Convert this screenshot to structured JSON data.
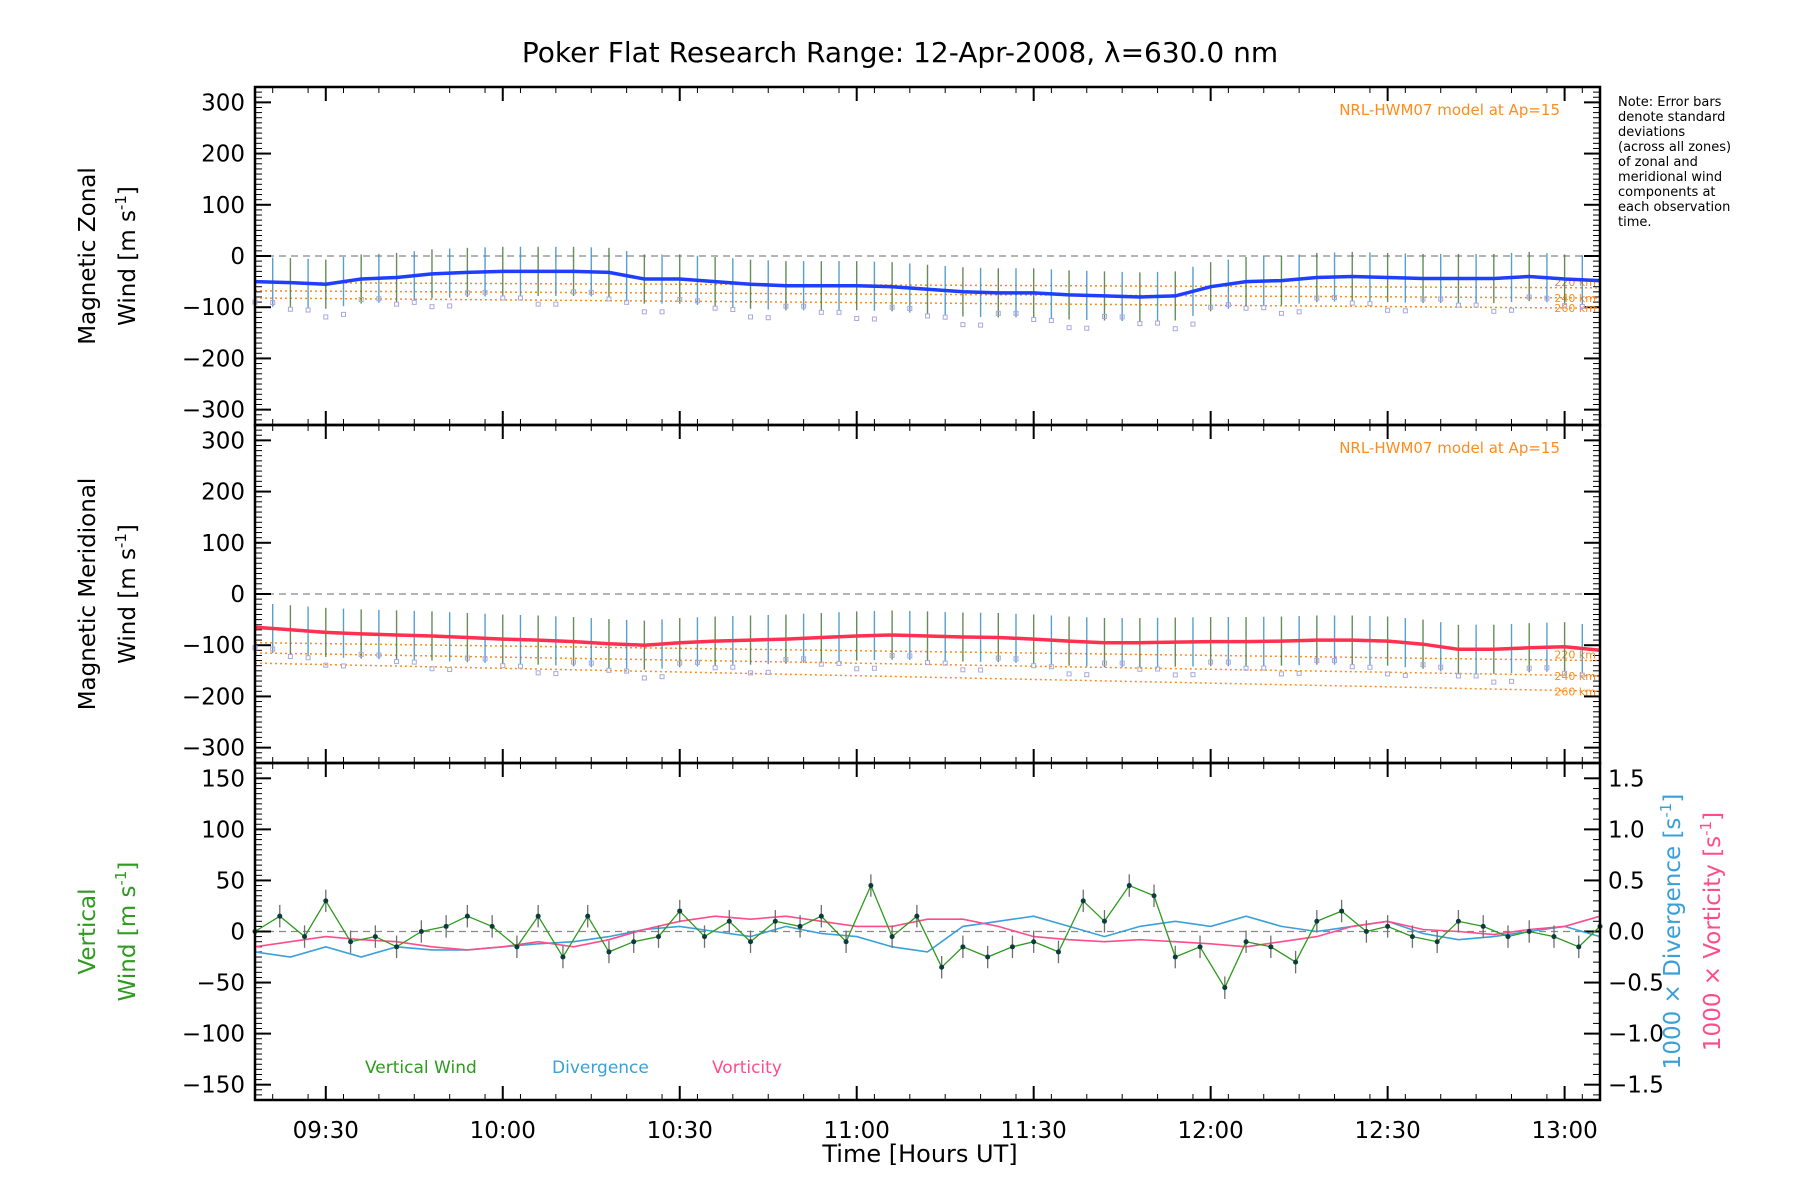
{
  "chart_data": {
    "title": "Poker Flat Research Range: 12-Apr-2008, λ=630.0 nm",
    "xlabel": "Time [Hours UT]",
    "x_ticks": [
      "09:30",
      "10:00",
      "10:30",
      "11:00",
      "11:30",
      "12:00",
      "12:30",
      "13:00"
    ],
    "x_tick_hours": [
      9.5,
      10.0,
      10.5,
      11.0,
      11.5,
      12.0,
      12.5,
      13.0
    ],
    "x_range_hours": [
      9.3,
      13.1
    ],
    "note": [
      "Note: Error bars",
      "denote standard",
      "deviations",
      "(across all zones)",
      "of zonal and",
      "meridional wind",
      "components at",
      "each observation",
      "time."
    ],
    "colors": {
      "zonal": "#1f3fff",
      "meridional": "#ff3050",
      "vertical": "#2e9a1e",
      "divergence": "#3aa0d8",
      "vorticity": "#ff4d8c",
      "model": "#ff8c1a",
      "zone_points": "#a8a8e0",
      "error_bar": "#6f6f6f"
    },
    "panels": [
      {
        "id": "zonal",
        "type": "line",
        "ylabel_1": "Magnetic Zonal",
        "ylabel_2": "Wind",
        "unit": "[m s",
        "unit_exp": "-1",
        "unit_close": "]",
        "ylim": [
          -330,
          330
        ],
        "y_ticks": [
          300,
          200,
          100,
          0,
          -100,
          -200,
          -300
        ],
        "model_label": "NRL-HWM07 model at Ap=15",
        "model_alts": [
          "220 km",
          "240 km",
          "260 km"
        ],
        "model_curves": {
          "x": [
            9.3,
            13.1
          ],
          "y220": [
            -52,
            -62
          ],
          "y240": [
            -68,
            -82
          ],
          "y260": [
            -82,
            -102
          ]
        },
        "series": {
          "x": [
            9.3,
            9.4,
            9.5,
            9.6,
            9.7,
            9.8,
            9.9,
            10.0,
            10.1,
            10.2,
            10.3,
            10.4,
            10.5,
            10.6,
            10.7,
            10.8,
            10.9,
            11.0,
            11.1,
            11.2,
            11.3,
            11.4,
            11.5,
            11.6,
            11.7,
            11.8,
            11.9,
            12.0,
            12.1,
            12.2,
            12.3,
            12.4,
            12.5,
            12.6,
            12.7,
            12.8,
            12.9,
            13.0,
            13.1
          ],
          "y": [
            -50,
            -52,
            -55,
            -45,
            -42,
            -35,
            -32,
            -30,
            -30,
            -30,
            -32,
            -45,
            -45,
            -50,
            -55,
            -58,
            -58,
            -58,
            -60,
            -65,
            -70,
            -72,
            -72,
            -76,
            -78,
            -80,
            -78,
            -60,
            -50,
            -48,
            -42,
            -40,
            -42,
            -44,
            -44,
            -44,
            -40,
            -45,
            -48
          ]
        }
      },
      {
        "id": "meridional",
        "type": "line",
        "ylabel_1": "Magnetic Meridional",
        "ylabel_2": "Wind",
        "unit": "[m s",
        "unit_exp": "-1",
        "unit_close": "]",
        "ylim": [
          -330,
          330
        ],
        "y_ticks": [
          300,
          200,
          100,
          0,
          -100,
          -200,
          -300
        ],
        "model_label": "NRL-HWM07 model at Ap=15",
        "model_alts": [
          "220 km",
          "240 km",
          "260 km"
        ],
        "model_curves": {
          "x": [
            9.3,
            13.1
          ],
          "y220": [
            -95,
            -130
          ],
          "y240": [
            -115,
            -160
          ],
          "y260": [
            -135,
            -190
          ]
        },
        "series": {
          "x": [
            9.3,
            9.4,
            9.5,
            9.6,
            9.7,
            9.8,
            9.9,
            10.0,
            10.1,
            10.2,
            10.3,
            10.4,
            10.5,
            10.6,
            10.7,
            10.8,
            10.9,
            11.0,
            11.1,
            11.2,
            11.3,
            11.4,
            11.5,
            11.6,
            11.7,
            11.8,
            11.9,
            12.0,
            12.1,
            12.2,
            12.3,
            12.4,
            12.5,
            12.6,
            12.7,
            12.8,
            12.9,
            13.0,
            13.1
          ],
          "y": [
            -65,
            -70,
            -75,
            -78,
            -80,
            -82,
            -85,
            -88,
            -90,
            -93,
            -97,
            -100,
            -95,
            -92,
            -90,
            -88,
            -85,
            -82,
            -80,
            -82,
            -84,
            -85,
            -88,
            -92,
            -95,
            -95,
            -94,
            -93,
            -93,
            -92,
            -90,
            -90,
            -92,
            -98,
            -108,
            -108,
            -105,
            -103,
            -110
          ]
        }
      },
      {
        "id": "vertical",
        "type": "line",
        "ylabel_1": "Vertical",
        "ylabel_2": "Wind",
        "unit": "[m s",
        "unit_exp": "-1",
        "unit_close": "]",
        "ylim": [
          -165,
          165
        ],
        "y_ticks": [
          150,
          100,
          50,
          0,
          -50,
          -100,
          -150
        ],
        "right_ylim": [
          -1.65,
          1.65
        ],
        "right_ticks": [
          "1.5",
          "1.0",
          "0.5",
          "0.0",
          "-0.5",
          "-1.0",
          "-1.5"
        ],
        "right_tick_values": [
          1.5,
          1.0,
          0.5,
          0.0,
          -0.5,
          -1.0,
          -1.5
        ],
        "right_label_div": "1000 × Divergence [s",
        "right_label_vor": "1000 × Vorticity [s",
        "right_label_exp": "-1",
        "right_label_close": "]",
        "legend": [
          "Vertical Wind",
          "Divergence",
          "Vorticity"
        ],
        "series": [
          {
            "name": "Vertical Wind",
            "x": [
              9.3,
              9.37,
              9.44,
              9.5,
              9.57,
              9.64,
              9.7,
              9.77,
              9.84,
              9.9,
              9.97,
              10.04,
              10.1,
              10.17,
              10.24,
              10.3,
              10.37,
              10.44,
              10.5,
              10.57,
              10.64,
              10.7,
              10.77,
              10.84,
              10.9,
              10.97,
              11.04,
              11.1,
              11.17,
              11.24,
              11.3,
              11.37,
              11.44,
              11.5,
              11.57,
              11.64,
              11.7,
              11.77,
              11.84,
              11.9,
              11.97,
              12.04,
              12.1,
              12.17,
              12.24,
              12.3,
              12.37,
              12.44,
              12.5,
              12.57,
              12.64,
              12.7,
              12.77,
              12.84,
              12.9,
              12.97,
              13.04,
              13.1
            ],
            "y": [
              0,
              15,
              -5,
              30,
              -10,
              -5,
              -15,
              0,
              5,
              15,
              5,
              -15,
              15,
              -25,
              15,
              -20,
              -10,
              -5,
              20,
              -5,
              10,
              -10,
              10,
              5,
              15,
              -10,
              45,
              -5,
              15,
              -35,
              -15,
              -25,
              -15,
              -10,
              -20,
              30,
              10,
              45,
              35,
              -25,
              -15,
              -55,
              -10,
              -15,
              -30,
              10,
              20,
              0,
              5,
              -5,
              -10,
              10,
              5,
              -5,
              0,
              -5,
              -15,
              5
            ]
          },
          {
            "name": "Divergence",
            "x": [
              9.3,
              9.4,
              9.5,
              9.6,
              9.7,
              9.8,
              9.9,
              10.0,
              10.1,
              10.2,
              10.3,
              10.4,
              10.5,
              10.6,
              10.7,
              10.8,
              10.9,
              11.0,
              11.1,
              11.2,
              11.3,
              11.4,
              11.5,
              11.6,
              11.7,
              11.8,
              11.9,
              12.0,
              12.1,
              12.2,
              12.3,
              12.4,
              12.5,
              12.6,
              12.7,
              12.8,
              12.9,
              13.0,
              13.1
            ],
            "y": [
              -0.2,
              -0.25,
              -0.15,
              -0.25,
              -0.15,
              -0.18,
              -0.18,
              -0.15,
              -0.12,
              -0.1,
              -0.05,
              0.02,
              0.05,
              0.0,
              -0.05,
              0.05,
              -0.02,
              -0.05,
              -0.15,
              -0.2,
              0.05,
              0.1,
              0.15,
              0.05,
              -0.05,
              0.05,
              0.1,
              0.05,
              0.15,
              0.05,
              0.0,
              0.05,
              0.1,
              -0.02,
              -0.08,
              -0.05,
              0.0,
              0.05,
              -0.05
            ]
          },
          {
            "name": "Vorticity",
            "x": [
              9.3,
              9.4,
              9.5,
              9.6,
              9.7,
              9.8,
              9.9,
              10.0,
              10.1,
              10.2,
              10.3,
              10.4,
              10.5,
              10.6,
              10.7,
              10.8,
              10.9,
              11.0,
              11.1,
              11.2,
              11.3,
              11.4,
              11.5,
              11.6,
              11.7,
              11.8,
              11.9,
              12.0,
              12.1,
              12.2,
              12.3,
              12.4,
              12.5,
              12.6,
              12.7,
              12.8,
              12.9,
              13.0,
              13.1
            ],
            "y": [
              -0.15,
              -0.1,
              -0.05,
              -0.08,
              -0.1,
              -0.15,
              -0.18,
              -0.15,
              -0.1,
              -0.15,
              -0.08,
              0.02,
              0.1,
              0.15,
              0.12,
              0.15,
              0.1,
              0.05,
              0.05,
              0.12,
              0.12,
              0.05,
              -0.05,
              -0.08,
              -0.1,
              -0.08,
              -0.1,
              -0.12,
              -0.15,
              -0.1,
              -0.05,
              0.05,
              0.1,
              0.02,
              0.0,
              -0.03,
              0.02,
              0.05,
              0.15
            ]
          }
        ]
      }
    ]
  }
}
